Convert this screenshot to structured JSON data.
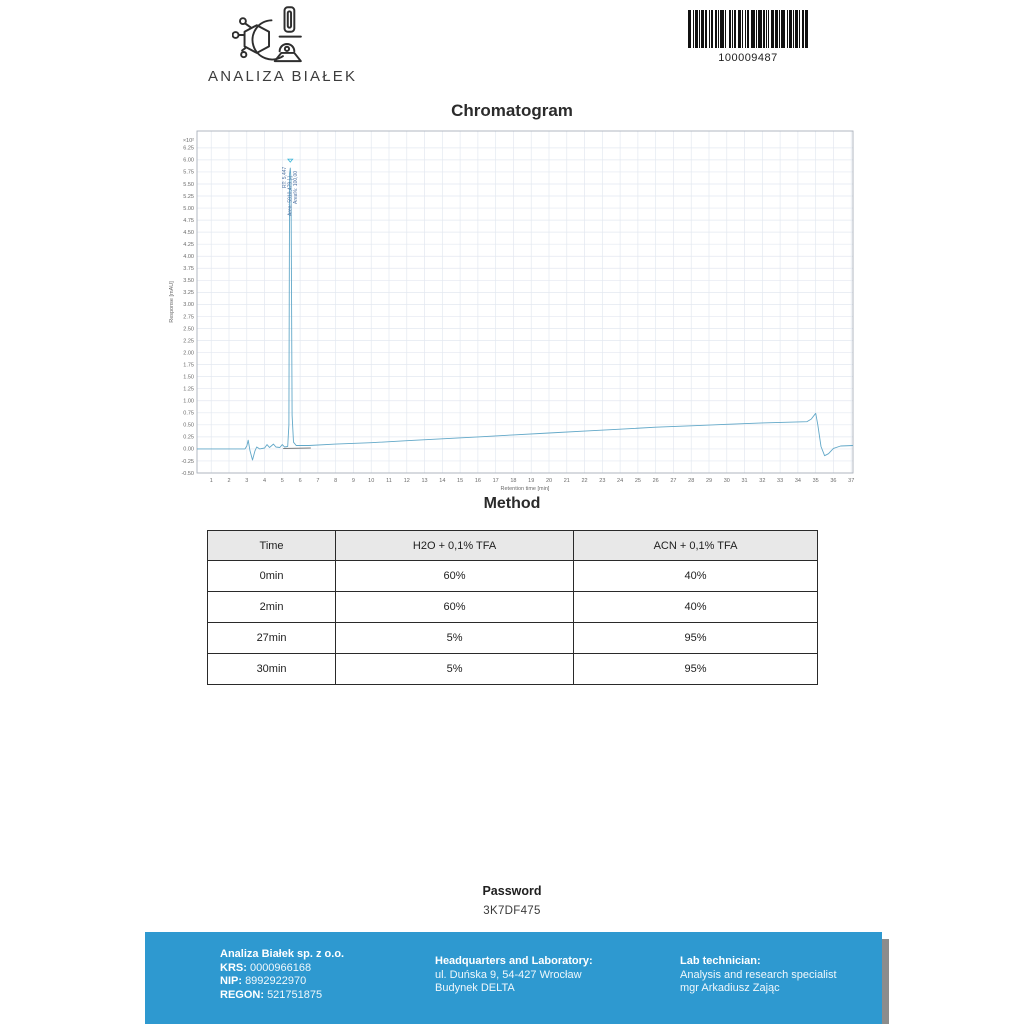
{
  "logo": {
    "brand": "ANALIZA BIAŁEK"
  },
  "barcode": {
    "value": "100009487",
    "pattern": [
      3,
      2,
      1,
      1,
      2,
      1,
      1,
      1,
      3,
      1,
      2,
      2,
      1,
      1,
      1,
      2,
      2,
      1,
      1,
      1,
      4,
      1,
      1,
      2,
      2,
      1,
      1,
      1,
      2,
      2,
      3,
      1,
      1,
      1,
      1,
      1,
      2,
      2,
      4,
      1,
      1,
      1,
      3,
      1,
      2,
      1,
      1,
      1,
      1,
      2,
      3,
      1,
      2,
      1,
      1,
      1,
      4,
      2,
      1,
      1,
      2,
      1,
      1,
      1,
      3,
      1,
      1,
      2,
      2,
      1,
      2
    ]
  },
  "sections": {
    "chromatogram_title": "Chromatogram",
    "method_title": "Method",
    "password_title": "Password",
    "password_value": "3K7DF475"
  },
  "chart_data": {
    "type": "line",
    "title": "Chromatogram",
    "xlabel": "Retention time [min]",
    "ylabel": "Response [mAU]",
    "y_multiplier": "×10²",
    "xlim": [
      0.2,
      37.1
    ],
    "ylim": [
      -0.5,
      6.6
    ],
    "x_tick_min": 1,
    "x_tick_max": 37,
    "x_tick_step": 1,
    "y_tick_min": -0.5,
    "y_tick_max": 6.25,
    "y_tick_step": 0.25,
    "grid": true,
    "legend": "none",
    "peak": {
      "x": 5.447,
      "apex_value": 5.83,
      "labels": [
        "RT: 5,447",
        "Area: 5910,479 [-]",
        "Area%: 100,00"
      ],
      "marker_color": "#37b6d8",
      "label_color": "#4a6fa0"
    },
    "series": [
      {
        "name": "signal",
        "color": "#62a8c8",
        "width": 0.9,
        "points": [
          [
            0.2,
            0
          ],
          [
            1.0,
            0
          ],
          [
            2.0,
            0
          ],
          [
            2.9,
            0
          ],
          [
            3.0,
            0.06
          ],
          [
            3.08,
            0.18
          ],
          [
            3.18,
            -0.04
          ],
          [
            3.32,
            -0.23
          ],
          [
            3.46,
            -0.04
          ],
          [
            3.56,
            0.04
          ],
          [
            3.72,
            0
          ],
          [
            4.0,
            0.02
          ],
          [
            4.14,
            0.09
          ],
          [
            4.28,
            0.03
          ],
          [
            4.5,
            0.1
          ],
          [
            4.64,
            0.04
          ],
          [
            4.86,
            0.03
          ],
          [
            5.0,
            0.09
          ],
          [
            5.12,
            0.04
          ],
          [
            5.3,
            0.05
          ],
          [
            5.37,
            0.5
          ],
          [
            5.41,
            5.72
          ],
          [
            5.45,
            5.83
          ],
          [
            5.49,
            5.6
          ],
          [
            5.55,
            0.7
          ],
          [
            5.63,
            0.14
          ],
          [
            5.78,
            0.07
          ],
          [
            6.5,
            0.07
          ],
          [
            8,
            0.1
          ],
          [
            10,
            0.13
          ],
          [
            12,
            0.17
          ],
          [
            14,
            0.21
          ],
          [
            16,
            0.25
          ],
          [
            18,
            0.29
          ],
          [
            20,
            0.33
          ],
          [
            22,
            0.37
          ],
          [
            24,
            0.41
          ],
          [
            26,
            0.45
          ],
          [
            28,
            0.48
          ],
          [
            30,
            0.51
          ],
          [
            32,
            0.54
          ],
          [
            33.5,
            0.555
          ],
          [
            34.5,
            0.565
          ],
          [
            34.75,
            0.62
          ],
          [
            35.0,
            0.74
          ],
          [
            35.12,
            0.5
          ],
          [
            35.3,
            0.05
          ],
          [
            35.5,
            -0.14
          ],
          [
            35.72,
            -0.1
          ],
          [
            36.0,
            0.01
          ],
          [
            36.4,
            0.06
          ],
          [
            37.1,
            0.07
          ]
        ]
      },
      {
        "name": "integration-baseline",
        "color": "#555555",
        "width": 0.7,
        "points": [
          [
            5.05,
            0.01
          ],
          [
            6.6,
            0.02
          ]
        ]
      }
    ]
  },
  "method_table": {
    "headers": [
      "Time",
      "H2O + 0,1% TFA",
      "ACN + 0,1% TFA"
    ],
    "rows": [
      [
        "0min",
        "60%",
        "40%"
      ],
      [
        "2min",
        "60%",
        "40%"
      ],
      [
        "27min",
        "5%",
        "95%"
      ],
      [
        "30min",
        "5%",
        "95%"
      ]
    ]
  },
  "footer": {
    "company": {
      "name": "Analiza Białek sp. z o.o.",
      "krs_label": "KRS:",
      "krs": "0000966168",
      "nip_label": "NIP:",
      "nip": "8992922970",
      "regon_label": "REGON:",
      "regon": "521751875"
    },
    "hq": {
      "title": "Headquarters and Laboratory:",
      "line1": "ul. Duńska 9, 54-427 Wrocław",
      "line2": "Budynek DELTA"
    },
    "tech": {
      "title": "Lab technician:",
      "line1": "Analysis and research specialist",
      "line2": "mgr Arkadiusz Zając"
    }
  },
  "colors": {
    "accent": "#2e99d0",
    "trace": "#62a8c8",
    "grid": "#e3e8f0",
    "plot_border": "#a9b0ba",
    "tick_text": "#6a6a6a"
  }
}
